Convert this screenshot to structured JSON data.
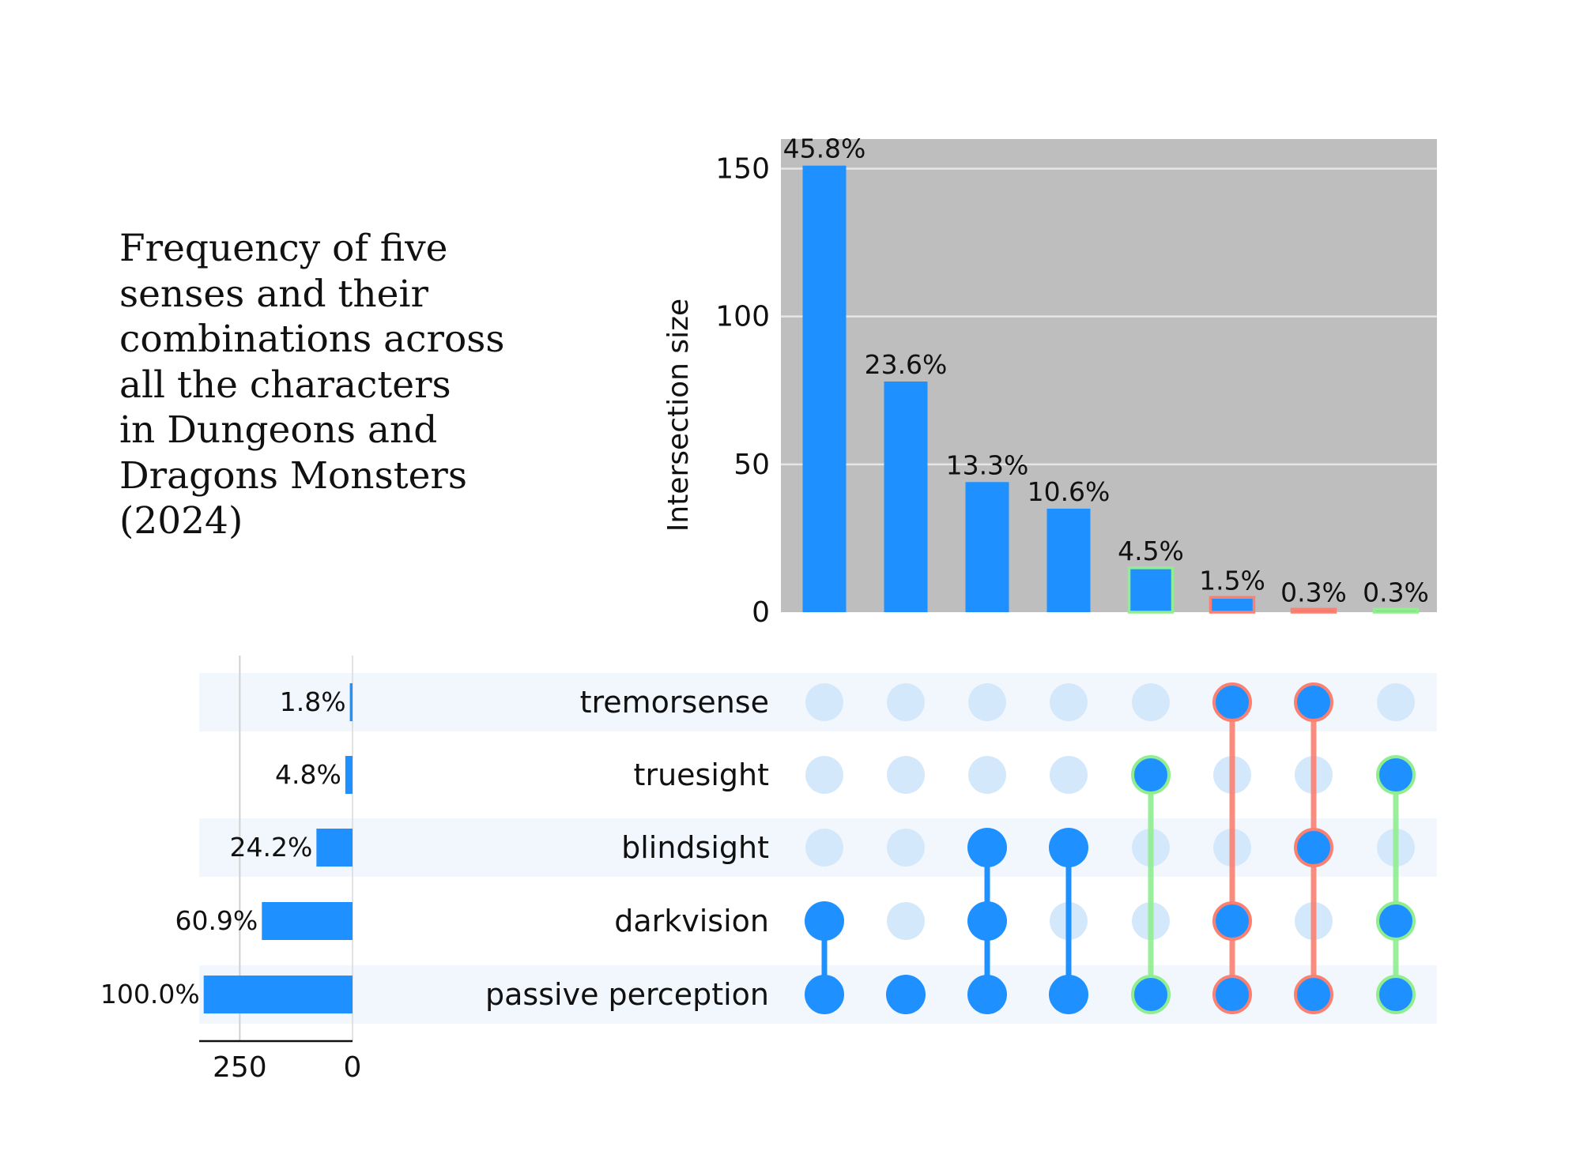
{
  "chart_data": {
    "type": "upset",
    "title_lines": [
      "Frequency of five",
      "senses and their",
      "combinations across",
      "all the characters",
      "in Dungeons and",
      "Dragons Monsters",
      "(2024)"
    ],
    "ylabel": "Intersection size",
    "ylim": [
      0,
      160
    ],
    "yticks": [
      "0",
      "50",
      "100",
      "150"
    ],
    "set_size_ticks": [
      "250",
      "0"
    ],
    "set_size_max": 340,
    "grid": true,
    "colors": {
      "primary": "#1e90ff",
      "inactive": "#d4e8fc",
      "plot_background": "#bebebe",
      "stripe": "#f2f7fd",
      "highlight_green": "#90ee90",
      "highlight_red": "#fa8072"
    },
    "sets": [
      {
        "name": "tremorsense",
        "size": 6,
        "label": "1.8%"
      },
      {
        "name": "truesight",
        "size": 16,
        "label": "4.8%"
      },
      {
        "name": "blindsight",
        "size": 80,
        "label": "24.2%"
      },
      {
        "name": "darkvision",
        "size": 201,
        "label": "60.9%"
      },
      {
        "name": "passive perception",
        "size": 330,
        "label": "100.0%"
      }
    ],
    "intersections": [
      {
        "value": 151,
        "label": "45.8%",
        "members": [
          "darkvision",
          "passive perception"
        ],
        "highlight": null
      },
      {
        "value": 78,
        "label": "23.6%",
        "members": [
          "passive perception"
        ],
        "highlight": null
      },
      {
        "value": 44,
        "label": "13.3%",
        "members": [
          "blindsight",
          "darkvision",
          "passive perception"
        ],
        "highlight": null
      },
      {
        "value": 35,
        "label": "10.6%",
        "members": [
          "blindsight",
          "passive perception"
        ],
        "highlight": null
      },
      {
        "value": 15,
        "label": "4.5%",
        "members": [
          "truesight",
          "passive perception"
        ],
        "highlight": "green"
      },
      {
        "value": 5,
        "label": "1.5%",
        "members": [
          "tremorsense",
          "darkvision",
          "passive perception"
        ],
        "highlight": "red"
      },
      {
        "value": 1,
        "label": "0.3%",
        "members": [
          "tremorsense",
          "blindsight",
          "passive perception"
        ],
        "highlight": "red"
      },
      {
        "value": 1,
        "label": "0.3%",
        "members": [
          "truesight",
          "darkvision",
          "passive perception"
        ],
        "highlight": "green"
      }
    ]
  }
}
